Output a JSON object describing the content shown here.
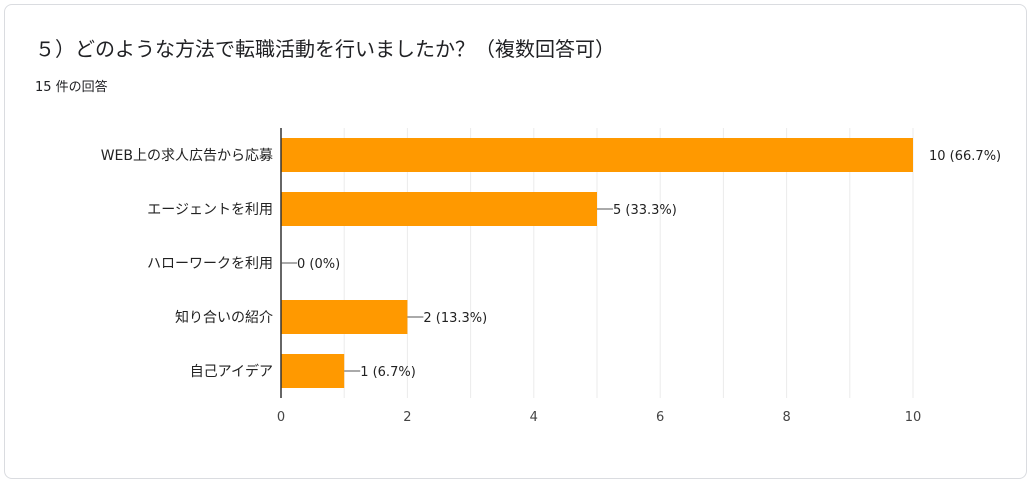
{
  "question": {
    "title": "５）どのような方法で転職活動を行いましたか？（複数回答可）",
    "response_count": "15 件の回答"
  },
  "colors": {
    "bar": "#ff9900",
    "grid": "#ebebeb",
    "axis": "#333333"
  },
  "chart_data": {
    "type": "bar",
    "orientation": "horizontal",
    "categories": [
      "WEB上の求人広告から応募",
      "エージェントを利用",
      "ハローワークを利用",
      "知り合いの紹介",
      "自己アイデア"
    ],
    "values": [
      10,
      5,
      0,
      2,
      1
    ],
    "value_labels": [
      "10 (66.7%)",
      "5 (33.3%)",
      "0 (0%)",
      "2 (13.3%)",
      "1 (6.7%)"
    ],
    "xlim": [
      0,
      10
    ],
    "xticks": [
      "0",
      "2",
      "4",
      "6",
      "8",
      "10"
    ],
    "grid": true
  }
}
